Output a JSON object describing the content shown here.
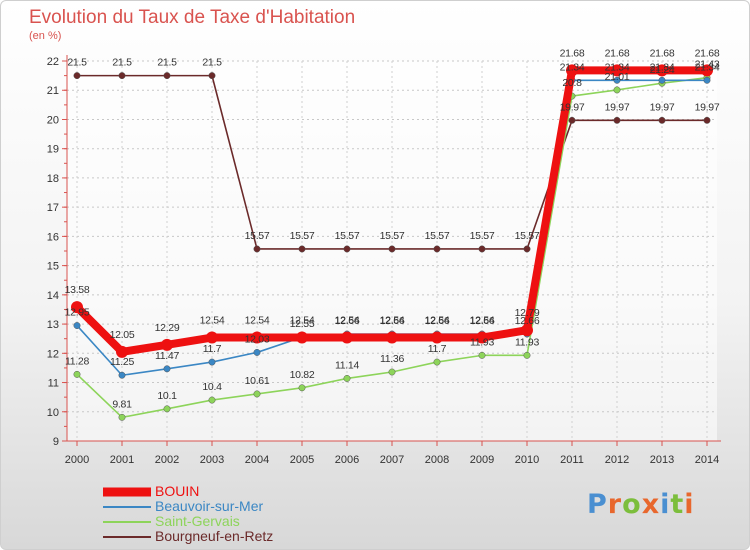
{
  "title": "Evolution du Taux de Taxe d'Habitation",
  "unit_label": "(en %)",
  "logo": {
    "text": "Proxiti",
    "letter_colors": [
      "#4a8fd1",
      "#e8672d",
      "#7cbe3c",
      "#e8672d",
      "#4a8fd1",
      "#7cbe3c",
      "#e8672d"
    ]
  },
  "chart_data": {
    "type": "line",
    "title": "Evolution du Taux de Taxe d'Habitation",
    "ylabel": "(en %)",
    "xlabel": "",
    "ylim": [
      9,
      22
    ],
    "y_ticks": [
      9,
      10,
      11,
      12,
      13,
      14,
      15,
      16,
      17,
      18,
      19,
      20,
      21,
      22
    ],
    "x": [
      "2000",
      "2001",
      "2002",
      "2003",
      "2004",
      "2005",
      "2006",
      "2007",
      "2008",
      "2009",
      "2010",
      "2011",
      "2012",
      "2013",
      "2014"
    ],
    "grid": true,
    "series": [
      {
        "name": "Bourgneuf-en-Retz",
        "color": "#6b2a2a",
        "values": [
          21.5,
          21.5,
          21.5,
          21.5,
          15.57,
          15.57,
          15.57,
          15.57,
          15.57,
          15.57,
          15.57,
          19.97,
          19.97,
          19.97,
          19.97
        ],
        "labels": [
          "21.5",
          "21.5",
          "21.5",
          "21.5",
          "15.57",
          "15.57",
          "15.57",
          "15.57",
          "15.57",
          "15.57",
          "15.57",
          "19.97",
          "19.97",
          "19.97",
          "19.97"
        ]
      },
      {
        "name": "Saint-Gervais",
        "color": "#8dd45a",
        "values": [
          11.28,
          9.81,
          10.1,
          10.4,
          10.61,
          10.82,
          11.14,
          11.36,
          11.7,
          11.93,
          11.93,
          20.8,
          21.01,
          21.24,
          21.43
        ],
        "labels": [
          "11.28",
          "9.81",
          "10.1",
          "10.4",
          "10.61",
          "10.82",
          "11.14",
          "11.36",
          "11.7",
          "11.93",
          "11.93",
          "20.8",
          "21.01",
          "21.24",
          "21.43"
        ]
      },
      {
        "name": "Beauvoir-sur-Mer",
        "color": "#3b87c4",
        "values": [
          12.95,
          11.25,
          11.47,
          11.7,
          12.03,
          12.55,
          12.66,
          12.66,
          12.66,
          12.66,
          12.66,
          21.34,
          21.34,
          21.34,
          21.34
        ],
        "labels": [
          "12.95",
          "11.25",
          "11.47",
          "11.7",
          "12.03",
          "12.55",
          "12.66",
          "12.66",
          "12.66",
          "12.66",
          "12.66",
          "21.34",
          "21.34",
          "21.34",
          "21.34"
        ]
      },
      {
        "name": "BOUIN",
        "color": "#ee1111",
        "values": [
          13.58,
          12.05,
          12.29,
          12.54,
          12.54,
          12.54,
          12.54,
          12.54,
          12.54,
          12.54,
          12.79,
          21.68,
          21.68,
          21.68,
          21.68
        ],
        "labels": [
          "13.58",
          "12.05",
          "12.29",
          "12.54",
          "12.54",
          "12.54",
          "12.54",
          "12.54",
          "12.54",
          "12.54",
          "12.79",
          "21.68",
          "21.68",
          "21.68",
          "21.68"
        ]
      }
    ],
    "legend": {
      "placement": "bottom-left",
      "entries": [
        {
          "name": "BOUIN",
          "color": "#ee1111"
        },
        {
          "name": "Beauvoir-sur-Mer",
          "color": "#3b87c4"
        },
        {
          "name": "Saint-Gervais",
          "color": "#8dd45a"
        },
        {
          "name": "Bourgneuf-en-Retz",
          "color": "#6b2a2a"
        }
      ]
    }
  }
}
